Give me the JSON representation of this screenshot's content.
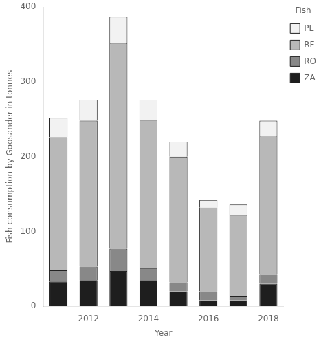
{
  "chart_data": {
    "type": "bar",
    "categories": [
      null,
      "2012",
      null,
      "2014",
      null,
      "2016",
      null,
      "2018"
    ],
    "series": [
      {
        "name": "ZA",
        "color": "#1e1e1e",
        "values": [
          33,
          35,
          47,
          35,
          20,
          8,
          8,
          30
        ]
      },
      {
        "name": "RO",
        "color": "#888888",
        "values": [
          15,
          18,
          30,
          16,
          12,
          12,
          6,
          13
        ]
      },
      {
        "name": "RF",
        "color": "#b8b8b8",
        "values": [
          178,
          195,
          275,
          198,
          168,
          112,
          108,
          185
        ]
      },
      {
        "name": "PE",
        "color": "#f2f2f2",
        "values": [
          26,
          28,
          35,
          27,
          20,
          10,
          14,
          20
        ]
      }
    ],
    "xlabel": "Year",
    "ylabel": "Fish consumption by Goosander in tonnes",
    "legend_title": "Fish",
    "ylim": [
      0,
      400
    ],
    "yticks": [
      0,
      100,
      200,
      300,
      400
    ],
    "stacked": true,
    "grid": false,
    "legend": "right"
  }
}
